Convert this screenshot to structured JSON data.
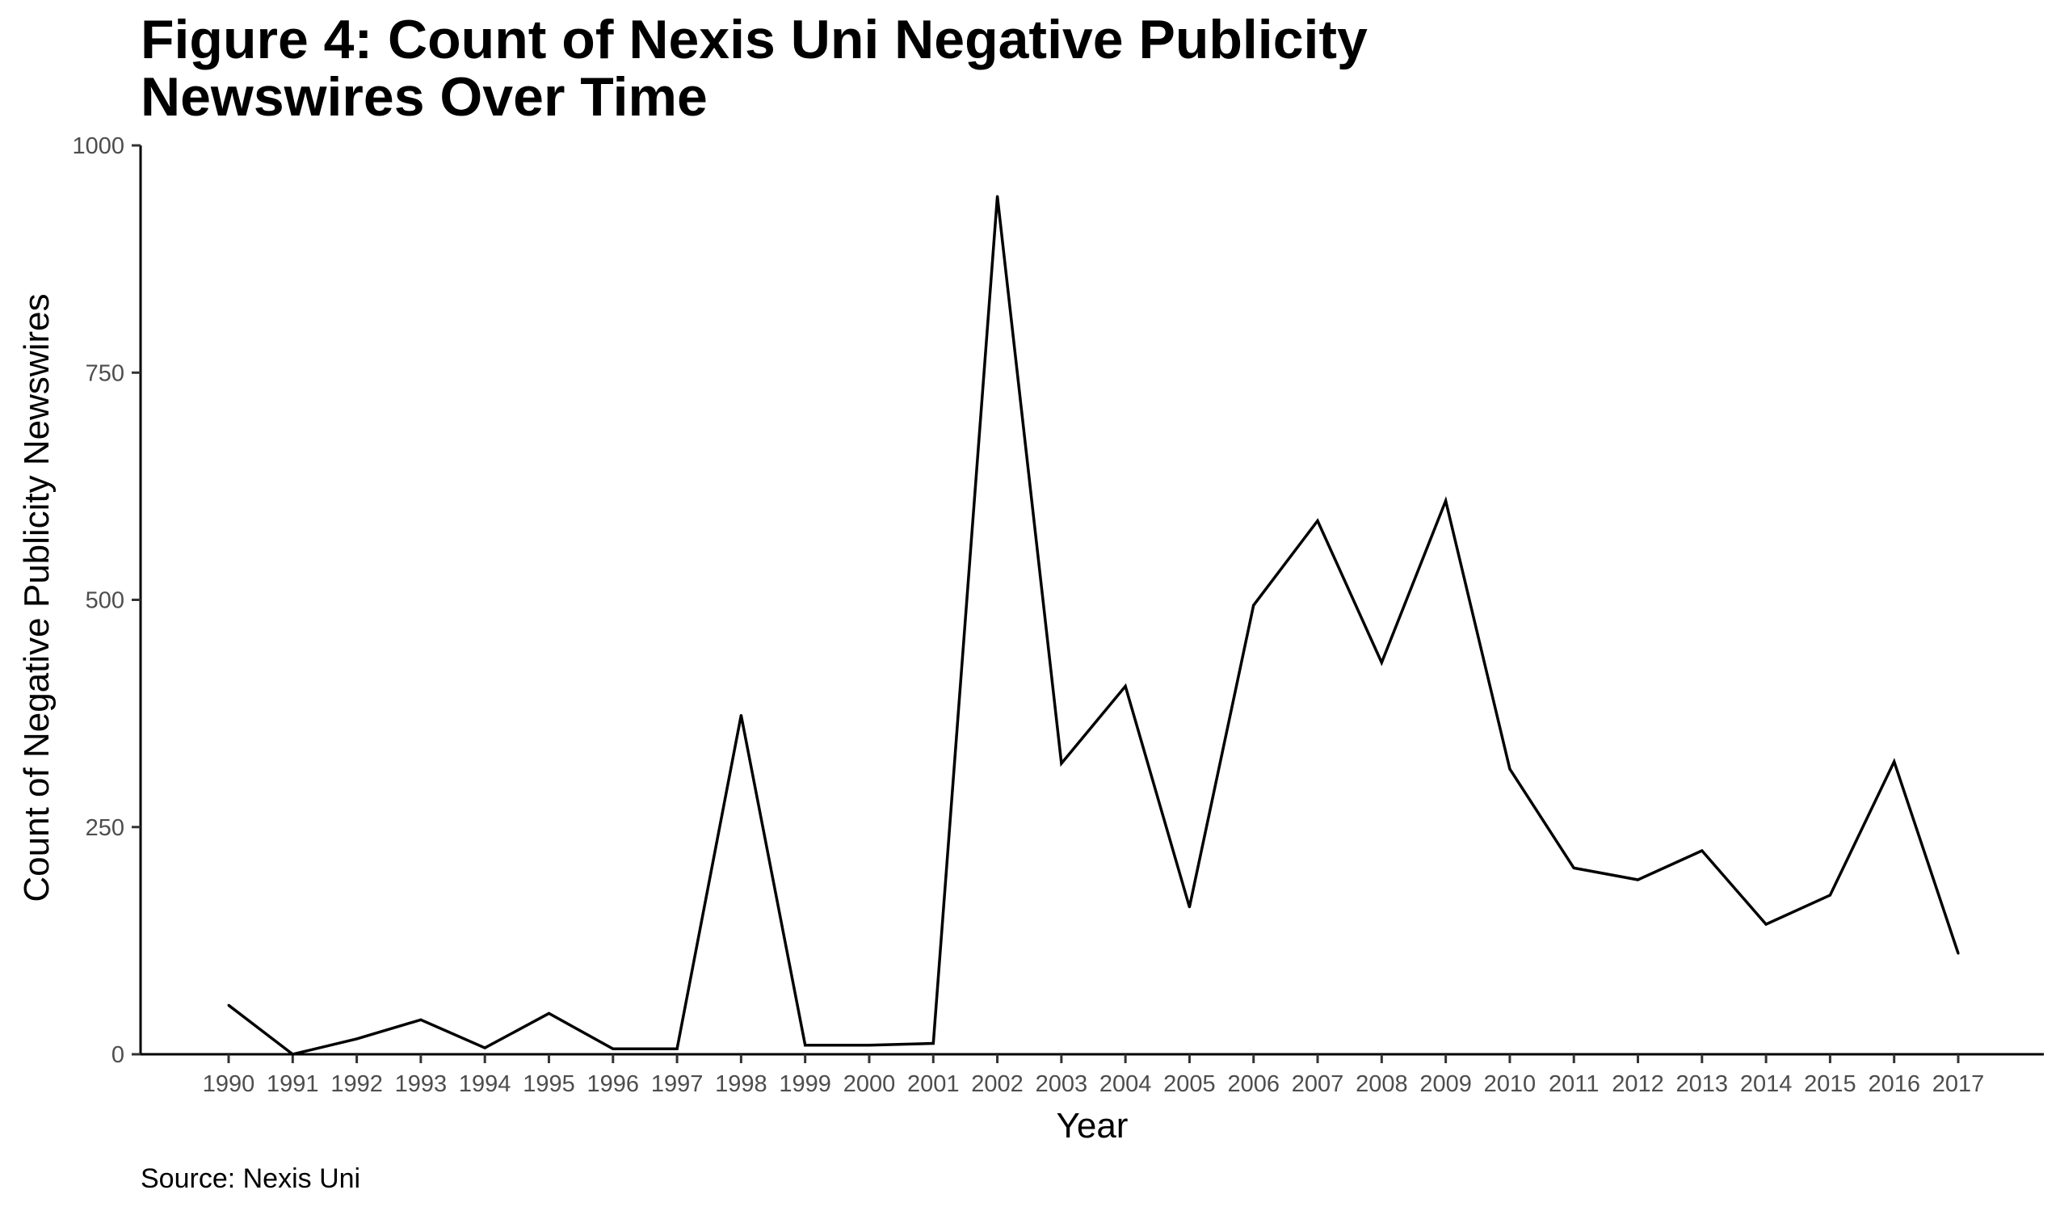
{
  "chart_data": {
    "type": "line",
    "title_lines": [
      "Figure 4: Count of Nexis Uni Negative Publicity",
      "Newswires Over Time"
    ],
    "xlabel": "Year",
    "ylabel": "Count of Negative Publicity Newswires",
    "caption": "Source: Nexis Uni",
    "x": [
      1990,
      1991,
      1992,
      1993,
      1994,
      1995,
      1996,
      1997,
      1998,
      1999,
      2000,
      2001,
      2002,
      2003,
      2004,
      2005,
      2006,
      2007,
      2008,
      2009,
      2010,
      2011,
      2012,
      2013,
      2014,
      2015,
      2016,
      2017
    ],
    "x_tick_labels": [
      "1990",
      "1991",
      "1992",
      "1993",
      "1994",
      "1995",
      "1996",
      "1997",
      "1998",
      "1999",
      "2000",
      "2001",
      "2002",
      "2003",
      "2004",
      "2005",
      "2006",
      "2007",
      "2008",
      "2009",
      "2010",
      "2011",
      "2012",
      "2013",
      "2014",
      "2015",
      "2016",
      "2017"
    ],
    "series": [
      {
        "values": [
          54,
          0,
          17,
          38,
          7,
          45,
          6,
          6,
          373,
          10,
          10,
          12,
          944,
          320,
          405,
          162,
          494,
          587,
          431,
          609,
          314,
          205,
          192,
          224,
          143,
          175,
          322,
          111
        ]
      }
    ],
    "ylim": [
      0,
      1000
    ],
    "y_ticks": [
      0,
      250,
      500,
      750,
      1000
    ],
    "y_tick_labels": [
      "0",
      "250",
      "500",
      "750",
      "1000"
    ],
    "grid": false,
    "line_color": "#000000"
  }
}
